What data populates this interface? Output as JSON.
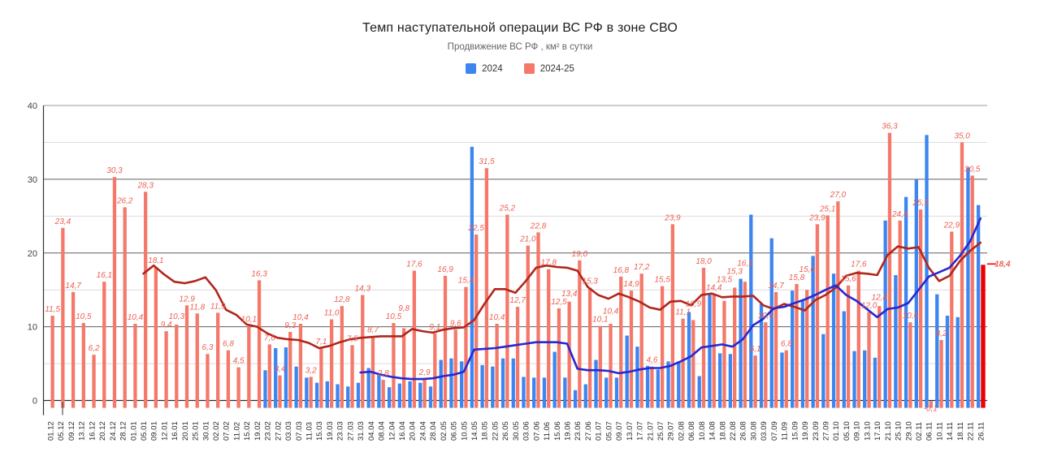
{
  "chart_data": {
    "type": "bar",
    "title": "Темп наступательной операции ВС РФ в зоне СВО",
    "subtitle": "Продвижение ВС РФ , км² в сутки",
    "ylabel": "км² в сутки",
    "ylim": [
      -1,
      40
    ],
    "yticks": [
      0,
      10,
      20,
      30,
      40
    ],
    "yticks_minor": [
      5,
      15,
      25,
      35
    ],
    "grid": "horizontal",
    "legend_position": "top",
    "decimal_separator": ",",
    "categories": [
      "01.12",
      "05.12",
      "09.12",
      "13.12",
      "16.12",
      "20.12",
      "24.12",
      "28.12",
      "01.01",
      "05.01",
      "09.01",
      "12.01",
      "16.01",
      "20.01",
      "25.01",
      "30.01",
      "02.02",
      "07.02",
      "11.02",
      "15.02",
      "19.02",
      "23.02",
      "27.02",
      "03.03",
      "07.03",
      "11.03",
      "15.03",
      "19.03",
      "23.03",
      "27.03",
      "31.03",
      "04.04",
      "08.04",
      "12.04",
      "16.04",
      "20.04",
      "24.04",
      "28.04",
      "02.05",
      "06.05",
      "10.05",
      "14.05",
      "18.05",
      "22.05",
      "26.05",
      "30.05",
      "03.06",
      "07.06",
      "11.06",
      "15.06",
      "19.06",
      "23.06",
      "27.06",
      "01.07",
      "05.07",
      "09.07",
      "13.07",
      "17.07",
      "21.07",
      "25.07",
      "29.07",
      "02.08",
      "06.08",
      "10.08",
      "14.08",
      "18.08",
      "22.08",
      "26.08",
      "30.08",
      "03.09",
      "07.09",
      "11.09",
      "15.09",
      "19.09",
      "23.09",
      "27.09",
      "01.10",
      "05.10",
      "09.10",
      "13.10",
      "17.10",
      "21.10",
      "25.10",
      "29.10",
      "02.11",
      "06.11",
      "10.11",
      "14.11",
      "18.11",
      "22.11",
      "26.11"
    ],
    "series": [
      {
        "name": "2024",
        "type": "bar",
        "color": "#3d85f0",
        "values": [
          null,
          null,
          null,
          null,
          null,
          null,
          null,
          null,
          null,
          null,
          null,
          null,
          null,
          null,
          null,
          null,
          null,
          null,
          null,
          null,
          null,
          4.1,
          7.1,
          7.2,
          4.6,
          3.1,
          2.4,
          2.6,
          2.2,
          1.9,
          2.4,
          4.4,
          3.6,
          1.8,
          2.3,
          2.6,
          2.4,
          1.9,
          5.5,
          5.7,
          5.3,
          34.4,
          4.8,
          4.6,
          5.7,
          5.7,
          3.2,
          3.1,
          3.1,
          6.6,
          3.1,
          1.4,
          2.2,
          5.5,
          3.1,
          3.1,
          8.8,
          7.3,
          4.7,
          4.2,
          5.3,
          5.3,
          12.0,
          3.3,
          14.5,
          6.4,
          6.3,
          16.5,
          25.2,
          13.1,
          22.0,
          6.5,
          14.9,
          13.5,
          19.6,
          9.0,
          17.2,
          12.1,
          6.7,
          6.8,
          5.8,
          24.4,
          17.0,
          27.6,
          30.0,
          36.0,
          14.4,
          11.5,
          11.3,
          31.6,
          26.5
        ]
      },
      {
        "name": "2024-25",
        "type": "bar",
        "color": "#f4796a",
        "data_labels": true,
        "label_color": "#eb6054",
        "last_bar": {
          "color": "#ec0000",
          "label_color": "#f20000",
          "label": "18,4"
        },
        "below_axis_label_index": 85,
        "values": [
          11.5,
          23.4,
          14.7,
          10.5,
          6.2,
          16.1,
          30.3,
          26.2,
          10.4,
          28.3,
          18.1,
          9.4,
          10.3,
          12.9,
          11.8,
          6.3,
          11.9,
          6.8,
          4.5,
          10.1,
          16.3,
          7.6,
          3.4,
          9.3,
          10.4,
          3.2,
          7.1,
          11.0,
          12.8,
          7.5,
          14.3,
          8.7,
          2.8,
          10.5,
          9.8,
          17.6,
          2.9,
          9.1,
          16.9,
          9.6,
          15.4,
          22.5,
          31.5,
          10.4,
          25.2,
          12.7,
          21.0,
          22.8,
          17.8,
          12.5,
          13.4,
          19.0,
          15.3,
          10.1,
          10.4,
          16.8,
          14.9,
          17.2,
          4.6,
          15.5,
          23.9,
          11.1,
          10.9,
          18.0,
          14.4,
          13.5,
          15.3,
          16.1,
          6.1,
          10.6,
          14.7,
          6.8,
          15.8,
          15.0,
          23.9,
          25.1,
          27.0,
          15.6,
          17.6,
          12.0,
          12.8,
          36.3,
          24.4,
          10.6,
          25.9,
          -0.1,
          8.2,
          22.9,
          35.0,
          30.5,
          18.4
        ]
      },
      {
        "name": "trend-2024-25",
        "type": "line",
        "color": "#b0261c",
        "values": [
          null,
          null,
          null,
          null,
          null,
          null,
          null,
          null,
          null,
          17.2,
          18.3,
          17.1,
          16.1,
          15.9,
          16.2,
          16.7,
          15.0,
          12.3,
          11.6,
          10.3,
          10.0,
          9.1,
          8.5,
          8.3,
          8.2,
          7.8,
          7.1,
          7.4,
          7.9,
          8.3,
          8.5,
          8.6,
          8.7,
          8.7,
          8.7,
          9.7,
          9.4,
          9.2,
          9.6,
          9.8,
          9.9,
          10.9,
          13.1,
          15.1,
          15.1,
          14.6,
          16.2,
          18.0,
          18.3,
          18.1,
          18.0,
          17.6,
          15.4,
          14.3,
          13.8,
          14.5,
          14.0,
          13.4,
          12.6,
          12.3,
          13.4,
          13.5,
          12.9,
          14.3,
          14.5,
          14.0,
          14.1,
          14.1,
          14.2,
          12.9,
          12.4,
          13.1,
          12.7,
          12.2,
          13.6,
          14.3,
          15.3,
          16.9,
          17.3,
          17.2,
          17.0,
          19.7,
          20.9,
          20.6,
          20.8,
          18.0,
          16.2,
          16.9,
          18.9,
          20.3,
          21.4
        ]
      },
      {
        "name": "trend-2024",
        "type": "line",
        "color": "#2828d0",
        "values": [
          null,
          null,
          null,
          null,
          null,
          null,
          null,
          null,
          null,
          null,
          null,
          null,
          null,
          null,
          null,
          null,
          null,
          null,
          null,
          null,
          null,
          null,
          null,
          null,
          null,
          null,
          null,
          null,
          null,
          null,
          3.8,
          3.9,
          3.5,
          3.2,
          3.0,
          2.9,
          2.9,
          3.0,
          3.3,
          3.5,
          3.9,
          6.9,
          7.0,
          7.1,
          7.3,
          7.5,
          7.7,
          7.9,
          7.9,
          7.9,
          7.7,
          4.3,
          4.1,
          4.1,
          4.0,
          3.7,
          3.9,
          4.2,
          4.4,
          4.4,
          4.7,
          5.3,
          6.0,
          7.2,
          7.4,
          7.6,
          7.3,
          8.3,
          10.2,
          11.1,
          12.5,
          12.7,
          13.2,
          13.7,
          14.3,
          15.0,
          15.6,
          14.3,
          13.5,
          12.4,
          11.3,
          12.4,
          12.6,
          13.2,
          15.0,
          16.8,
          17.4,
          18.0,
          19.6,
          21.6,
          24.7
        ]
      }
    ]
  }
}
